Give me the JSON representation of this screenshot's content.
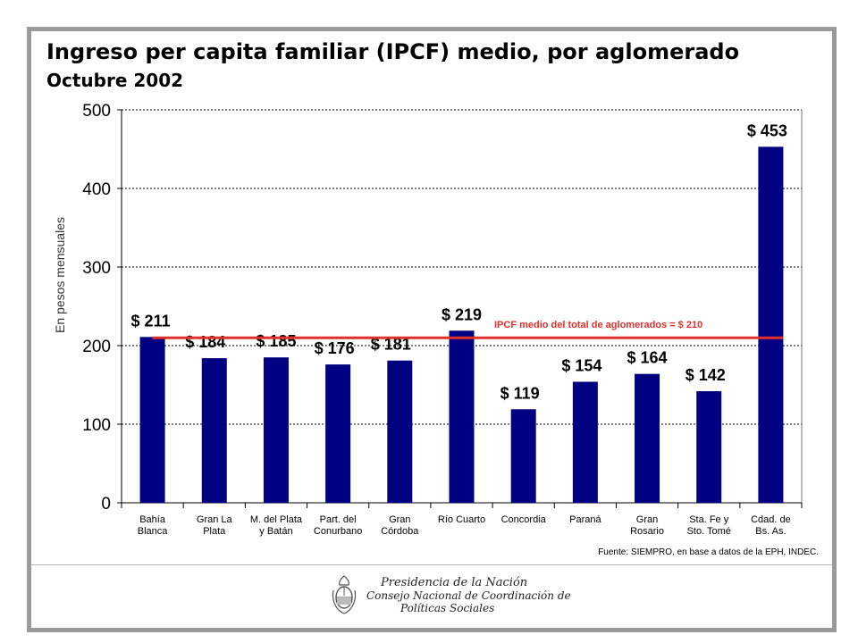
{
  "header": {
    "title": "Ingreso per capita familiar (IPCF) medio, por aglomerado",
    "subtitle": "Octubre 2002"
  },
  "chart_data": {
    "type": "bar",
    "title": "Ingreso per capita familiar (IPCF) medio, por aglomerado",
    "subtitle": "Octubre 2002",
    "ylabel": "En pesos mensuales",
    "xlabel": "",
    "ylim": [
      0,
      500
    ],
    "yticks": [
      0,
      100,
      200,
      300,
      400,
      500
    ],
    "grid": true,
    "categories": [
      [
        "Bahía",
        "Blanca"
      ],
      [
        "Gran La",
        "Plata"
      ],
      [
        "M. del Plata",
        "y Batán"
      ],
      [
        "Part. del",
        "Conurbano"
      ],
      [
        "Gran",
        "Córdoba"
      ],
      [
        "Río Cuarto"
      ],
      [
        "Concordia"
      ],
      [
        "Paraná"
      ],
      [
        "Gran",
        "Rosario"
      ],
      [
        "Sta. Fe y",
        "Sto. Tomé"
      ],
      [
        "Cdad. de",
        "Bs. As."
      ]
    ],
    "values": [
      211,
      184,
      185,
      176,
      181,
      219,
      119,
      154,
      164,
      142,
      453
    ],
    "data_labels": [
      "$ 211",
      "$ 184",
      "$ 185",
      "$ 176",
      "$ 181",
      "$ 219",
      "$ 119",
      "$ 154",
      "$ 164",
      "$ 142",
      "$ 453"
    ],
    "bar_color": "#000080",
    "reference_line": {
      "value": 210,
      "label": "IPCF medio del total de aglomerados = $ 210",
      "color": "#e0302a"
    }
  },
  "footer": {
    "source": "Fuente: SIEMPRO, en base a datos de la EPH, INDEC.",
    "org_line1": "Presidencia de la Nación",
    "org_line2": "Consejo Nacional de Coordinación de",
    "org_line3": "Políticas Sociales"
  }
}
